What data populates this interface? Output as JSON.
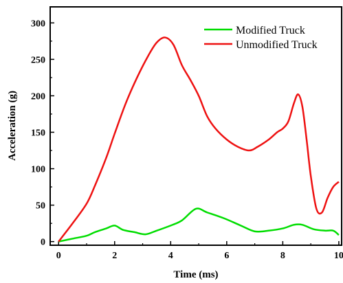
{
  "chart_data": {
    "type": "line",
    "title": "",
    "xlabel": "Time (ms)",
    "ylabel": "Acceleration (g)",
    "xlim": [
      -0.3,
      10.1
    ],
    "ylim": [
      -5,
      322
    ],
    "xticks": [
      0,
      2,
      4,
      6,
      8,
      10
    ],
    "yticks": [
      0,
      50,
      100,
      150,
      200,
      250,
      300
    ],
    "grid": false,
    "legend_placement": "top-right",
    "series": [
      {
        "name": "Modified Truck",
        "color": "#00dd00",
        "x": [
          0,
          0.5,
          1,
          1.3,
          1.7,
          2,
          2.3,
          2.7,
          3.1,
          3.5,
          4,
          4.4,
          4.9,
          5.3,
          5.9,
          6.5,
          7,
          7.5,
          8,
          8.4,
          8.7,
          9.1,
          9.5,
          9.8,
          10
        ],
        "y": [
          0,
          4,
          8,
          13,
          18,
          22,
          16,
          13,
          10,
          15,
          22,
          29,
          45,
          40,
          32,
          22,
          14,
          15,
          18,
          23,
          23,
          17,
          15,
          15,
          9
        ]
      },
      {
        "name": "Unmodified Truck",
        "color": "#ee1111",
        "x": [
          0,
          0.5,
          1,
          1.3,
          1.7,
          2,
          2.4,
          2.8,
          3.2,
          3.5,
          3.8,
          4.1,
          4.4,
          4.7,
          5,
          5.3,
          5.6,
          6,
          6.4,
          6.8,
          7.1,
          7.5,
          7.8,
          8,
          8.2,
          8.4,
          8.55,
          8.7,
          8.85,
          9,
          9.2,
          9.4,
          9.6,
          9.8,
          10
        ],
        "y": [
          0,
          25,
          52,
          77,
          115,
          148,
          190,
          225,
          255,
          273,
          280,
          270,
          242,
          222,
          200,
          172,
          155,
          140,
          130,
          125,
          130,
          140,
          150,
          155,
          165,
          190,
          202,
          185,
          140,
          90,
          45,
          40,
          60,
          75,
          82
        ]
      }
    ]
  }
}
